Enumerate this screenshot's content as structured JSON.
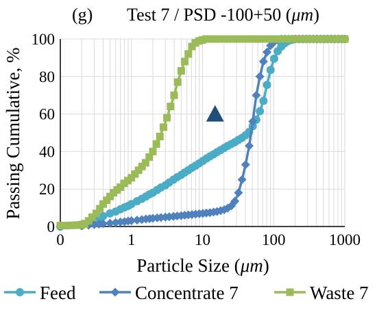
{
  "panel_label": "(g)",
  "title_prefix": "Test 7 / PSD -100+50 (",
  "title_unit": "μm",
  "title_suffix": ")",
  "xlabel_prefix": "Particle Size (",
  "xlabel_unit": "μm",
  "xlabel_suffix": ")",
  "ylabel": "Passing Cumulative, %",
  "colors": {
    "feed": "#4bacc6",
    "concentrate": "#4f81bd",
    "waste": "#9bbb59",
    "triangle": "#1f4e79",
    "grid": "#d9d9d9",
    "axis": "#000000"
  },
  "chart_data": {
    "type": "line",
    "x_scale": "log",
    "xlim": [
      0.1,
      1000
    ],
    "ylim": [
      0,
      100
    ],
    "x_ticks": [
      "0",
      "1",
      "10",
      "100",
      "1000"
    ],
    "x_tick_values": [
      0.1,
      1,
      10,
      100,
      1000
    ],
    "y_ticks": [
      "0",
      "20",
      "40",
      "60",
      "80",
      "100"
    ],
    "y_tick_values": [
      0,
      20,
      40,
      60,
      80,
      100
    ],
    "grid": true,
    "legend_position": "bottom",
    "annotation": {
      "shape": "triangle",
      "x": 15,
      "y": 60
    },
    "series": [
      {
        "name": "Feed",
        "marker": "circle",
        "color_key": "feed",
        "points": [
          [
            0.1,
            0
          ],
          [
            0.2,
            0.6
          ],
          [
            0.25,
            2
          ],
          [
            0.3,
            3.5
          ],
          [
            0.35,
            4.5
          ],
          [
            0.4,
            5.5
          ],
          [
            0.5,
            7
          ],
          [
            0.6,
            8
          ],
          [
            0.7,
            9.2
          ],
          [
            0.8,
            10.2
          ],
          [
            0.9,
            11
          ],
          [
            1.0,
            12
          ],
          [
            1.2,
            13.5
          ],
          [
            1.4,
            14.8
          ],
          [
            1.6,
            16
          ],
          [
            1.8,
            17.2
          ],
          [
            2.0,
            18
          ],
          [
            2.3,
            19.5
          ],
          [
            2.6,
            20.8
          ],
          [
            3.0,
            22
          ],
          [
            3.4,
            23.5
          ],
          [
            3.9,
            25
          ],
          [
            4.4,
            26.3
          ],
          [
            5.0,
            27.5
          ],
          [
            5.6,
            28.8
          ],
          [
            6.3,
            30
          ],
          [
            7.1,
            31.3
          ],
          [
            8.0,
            32.5
          ],
          [
            9.0,
            33.7
          ],
          [
            10.1,
            35
          ],
          [
            11.3,
            36.2
          ],
          [
            12.7,
            37.4
          ],
          [
            14.3,
            38.5
          ],
          [
            16,
            39.7
          ],
          [
            18,
            40.8
          ],
          [
            20.2,
            41.9
          ],
          [
            22.6,
            43
          ],
          [
            25.4,
            44
          ],
          [
            28.5,
            45
          ],
          [
            32,
            46.2
          ],
          [
            35.9,
            47.3
          ],
          [
            40.3,
            48.7
          ],
          [
            45.3,
            50.5
          ],
          [
            50.8,
            53.5
          ],
          [
            57,
            57
          ],
          [
            64,
            61.5
          ],
          [
            71.8,
            67
          ],
          [
            80.6,
            75.5
          ],
          [
            90.5,
            83.5
          ],
          [
            101.6,
            89.5
          ],
          [
            114,
            93.5
          ],
          [
            128,
            96
          ],
          [
            143.7,
            97.8
          ],
          [
            161.3,
            99
          ],
          [
            181,
            99.6
          ],
          [
            203,
            100
          ],
          [
            228,
            100
          ],
          [
            256,
            100
          ],
          [
            287,
            100
          ],
          [
            322,
            100
          ],
          [
            362,
            100
          ],
          [
            406,
            100
          ],
          [
            456,
            100
          ],
          [
            512,
            100
          ],
          [
            574,
            100
          ],
          [
            645,
            100
          ],
          [
            724,
            100
          ],
          [
            812,
            100
          ],
          [
            912,
            100
          ],
          [
            1000,
            100
          ]
        ]
      },
      {
        "name": "Concentrate 7",
        "marker": "diamond",
        "color_key": "concentrate",
        "points": [
          [
            0.1,
            0
          ],
          [
            0.2,
            0.3
          ],
          [
            0.25,
            0.7
          ],
          [
            0.3,
            1
          ],
          [
            0.35,
            1.3
          ],
          [
            0.4,
            1.5
          ],
          [
            0.5,
            1.8
          ],
          [
            0.6,
            2.1
          ],
          [
            0.7,
            2.4
          ],
          [
            0.8,
            2.6
          ],
          [
            0.9,
            2.9
          ],
          [
            1.0,
            3.1
          ],
          [
            1.2,
            3.4
          ],
          [
            1.4,
            3.7
          ],
          [
            1.6,
            4
          ],
          [
            1.8,
            4.2
          ],
          [
            2.0,
            4.4
          ],
          [
            2.3,
            4.6
          ],
          [
            2.6,
            4.8
          ],
          [
            3.0,
            5
          ],
          [
            3.4,
            5.2
          ],
          [
            3.9,
            5.4
          ],
          [
            4.4,
            5.6
          ],
          [
            5.0,
            5.8
          ],
          [
            5.6,
            6
          ],
          [
            6.3,
            6.2
          ],
          [
            7.1,
            6.4
          ],
          [
            8.0,
            6.6
          ],
          [
            9.0,
            6.8
          ],
          [
            10.1,
            7
          ],
          [
            11.3,
            7.2
          ],
          [
            12.7,
            7.4
          ],
          [
            14.3,
            7.7
          ],
          [
            16,
            8
          ],
          [
            18,
            8.5
          ],
          [
            20.2,
            9
          ],
          [
            22.6,
            9.8
          ],
          [
            25.4,
            11
          ],
          [
            28.5,
            13.5
          ],
          [
            32,
            18
          ],
          [
            35.9,
            25
          ],
          [
            40.3,
            33
          ],
          [
            45.3,
            43
          ],
          [
            50.8,
            56
          ],
          [
            57,
            70
          ],
          [
            64,
            80
          ],
          [
            71.8,
            88
          ],
          [
            80.6,
            93
          ],
          [
            90.5,
            96.5
          ],
          [
            101.6,
            98.5
          ],
          [
            114,
            99.5
          ],
          [
            128,
            100
          ],
          [
            143.7,
            100
          ],
          [
            161.3,
            100
          ],
          [
            181,
            100
          ],
          [
            203,
            100
          ],
          [
            228,
            100
          ],
          [
            256,
            100
          ],
          [
            287,
            100
          ],
          [
            322,
            100
          ],
          [
            362,
            100
          ],
          [
            406,
            100
          ],
          [
            456,
            100
          ],
          [
            512,
            100
          ],
          [
            574,
            100
          ],
          [
            645,
            100
          ],
          [
            724,
            100
          ],
          [
            812,
            100
          ],
          [
            912,
            100
          ],
          [
            1000,
            100
          ]
        ]
      },
      {
        "name": "Waste 7",
        "marker": "square",
        "color_key": "waste",
        "points": [
          [
            0.1,
            0.5
          ],
          [
            0.12,
            0.5
          ],
          [
            0.14,
            0.6
          ],
          [
            0.16,
            0.7
          ],
          [
            0.18,
            0.8
          ],
          [
            0.2,
            1
          ],
          [
            0.22,
            1.5
          ],
          [
            0.25,
            3
          ],
          [
            0.28,
            5
          ],
          [
            0.32,
            7
          ],
          [
            0.36,
            9.5
          ],
          [
            0.4,
            12
          ],
          [
            0.45,
            14
          ],
          [
            0.5,
            16
          ],
          [
            0.56,
            18
          ],
          [
            0.63,
            19.5
          ],
          [
            0.7,
            21
          ],
          [
            0.79,
            23
          ],
          [
            0.89,
            24.5
          ],
          [
            1.0,
            26
          ],
          [
            1.12,
            28
          ],
          [
            1.26,
            30
          ],
          [
            1.41,
            32
          ],
          [
            1.58,
            34
          ],
          [
            1.78,
            37
          ],
          [
            2.0,
            40
          ],
          [
            2.24,
            44
          ],
          [
            2.51,
            48
          ],
          [
            2.82,
            53
          ],
          [
            3.16,
            58
          ],
          [
            3.55,
            64
          ],
          [
            3.98,
            70
          ],
          [
            4.47,
            77
          ],
          [
            5.01,
            83
          ],
          [
            5.62,
            88
          ],
          [
            6.31,
            92
          ],
          [
            7.08,
            96
          ],
          [
            7.94,
            98
          ],
          [
            8.91,
            99
          ],
          [
            10,
            99.5
          ],
          [
            11.2,
            100
          ],
          [
            12.6,
            100
          ],
          [
            14.1,
            100
          ],
          [
            15.8,
            100
          ],
          [
            17.8,
            100
          ],
          [
            20,
            100
          ],
          [
            22.4,
            100
          ],
          [
            25.1,
            100
          ],
          [
            28.2,
            100
          ],
          [
            31.6,
            100
          ],
          [
            35.5,
            100
          ],
          [
            39.8,
            100
          ],
          [
            44.7,
            100
          ],
          [
            50.1,
            100
          ],
          [
            56.2,
            100
          ],
          [
            63.1,
            100
          ],
          [
            70.8,
            100
          ],
          [
            79.4,
            100
          ],
          [
            89.1,
            100
          ],
          [
            100,
            100
          ],
          [
            112,
            100
          ],
          [
            126,
            100
          ],
          [
            141,
            100
          ],
          [
            158,
            100
          ],
          [
            178,
            100
          ],
          [
            200,
            100
          ],
          [
            224,
            100
          ],
          [
            251,
            100
          ],
          [
            282,
            100
          ],
          [
            316,
            100
          ],
          [
            355,
            100
          ],
          [
            398,
            100
          ],
          [
            447,
            100
          ],
          [
            501,
            100
          ],
          [
            562,
            100
          ],
          [
            631,
            100
          ],
          [
            708,
            100
          ],
          [
            794,
            100
          ],
          [
            891,
            100
          ],
          [
            1000,
            100
          ]
        ]
      }
    ]
  }
}
